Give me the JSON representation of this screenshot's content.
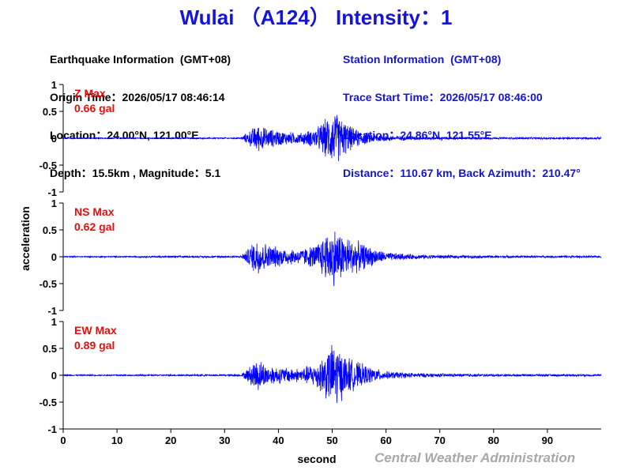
{
  "header": {
    "title": "Wulai （A124） Intensity：1"
  },
  "earthquake_info": {
    "heading": "Earthquake Information  (GMT+08)",
    "origin_time": "Origin Time：2026/05/17 08:46:14",
    "location": "Location：24.00°N, 121.00°E",
    "depth_magnitude": "Depth：15.5km , Magnitude：5.1"
  },
  "station_info": {
    "heading": "Station Information  (GMT+08)",
    "trace_start": "Trace Start Time：2026/05/17 08:46:00",
    "location": "Location：24.86°N, 121.55°E",
    "distance": "Distance：110.67 km, Back Azimuth：210.47°"
  },
  "credit": "Central Weather Administration",
  "colors": {
    "trace": "#0000ff",
    "title": "#1414d8",
    "max_label": "#e01010",
    "credit": "#a8a8a8"
  },
  "chart_data": {
    "type": "line",
    "xlabel": "second",
    "ylabel": "acceleration",
    "xlim": [
      0,
      100
    ],
    "x_ticks": [
      0,
      10,
      20,
      30,
      40,
      50,
      60,
      70,
      80,
      90
    ],
    "y_ticks": [
      1,
      0.5,
      0,
      -0.5,
      -1
    ],
    "ylim": [
      -1,
      1
    ],
    "grid": false,
    "panels": [
      {
        "component": "Z Max",
        "max_value": "0.66 gal",
        "envelope": {
          "t": [
            0,
            33,
            34,
            36,
            38,
            41,
            44,
            47,
            49,
            50.5,
            52,
            54,
            57,
            60,
            65,
            70,
            80,
            100
          ],
          "amp": [
            0.01,
            0.015,
            0.1,
            0.28,
            0.2,
            0.14,
            0.11,
            0.2,
            0.42,
            0.55,
            0.38,
            0.2,
            0.1,
            0.06,
            0.035,
            0.03,
            0.02,
            0.02
          ]
        }
      },
      {
        "component": "NS Max",
        "max_value": "0.62 gal",
        "envelope": {
          "t": [
            0,
            33,
            34,
            36,
            38,
            41,
            44,
            47,
            49,
            50.5,
            52,
            54,
            57,
            60,
            65,
            70,
            80,
            100
          ],
          "amp": [
            0.012,
            0.02,
            0.12,
            0.4,
            0.25,
            0.18,
            0.15,
            0.25,
            0.5,
            0.6,
            0.45,
            0.35,
            0.2,
            0.09,
            0.05,
            0.035,
            0.025,
            0.02
          ]
        }
      },
      {
        "component": "EW Max",
        "max_value": "0.89 gal",
        "envelope": {
          "t": [
            0,
            33,
            34,
            36,
            38,
            41,
            44,
            47,
            49,
            50.5,
            52,
            54,
            57,
            60,
            65,
            70,
            80,
            100
          ],
          "amp": [
            0.012,
            0.02,
            0.1,
            0.35,
            0.2,
            0.16,
            0.14,
            0.25,
            0.5,
            0.7,
            0.45,
            0.3,
            0.17,
            0.08,
            0.05,
            0.035,
            0.025,
            0.02
          ]
        }
      }
    ]
  }
}
